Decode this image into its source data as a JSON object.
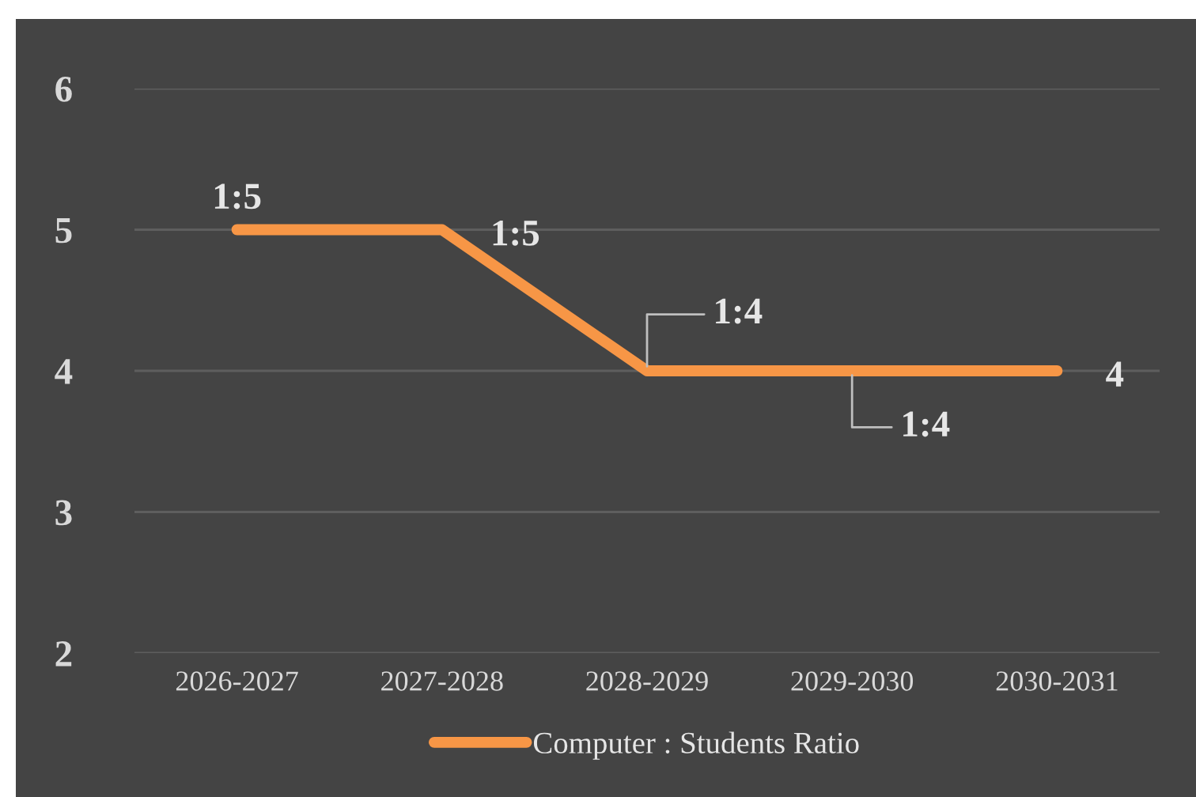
{
  "chart_data": {
    "type": "line",
    "categories": [
      "2026-2027",
      "2027-2028",
      "2028-2029",
      "2029-2030",
      "2030-2031"
    ],
    "series": [
      {
        "name": "Computer : Students Ratio",
        "color": "#f79646",
        "values": [
          5,
          5,
          4,
          4,
          4
        ],
        "value_labels": [
          "1:5",
          "1:5",
          "1:4",
          "1:4",
          "4"
        ]
      }
    ],
    "ylim": [
      2,
      6
    ],
    "yticks": [
      2,
      3,
      4,
      5,
      6
    ],
    "grid": "y",
    "legend": "bottom",
    "marker": "none",
    "line_style": "solid"
  }
}
